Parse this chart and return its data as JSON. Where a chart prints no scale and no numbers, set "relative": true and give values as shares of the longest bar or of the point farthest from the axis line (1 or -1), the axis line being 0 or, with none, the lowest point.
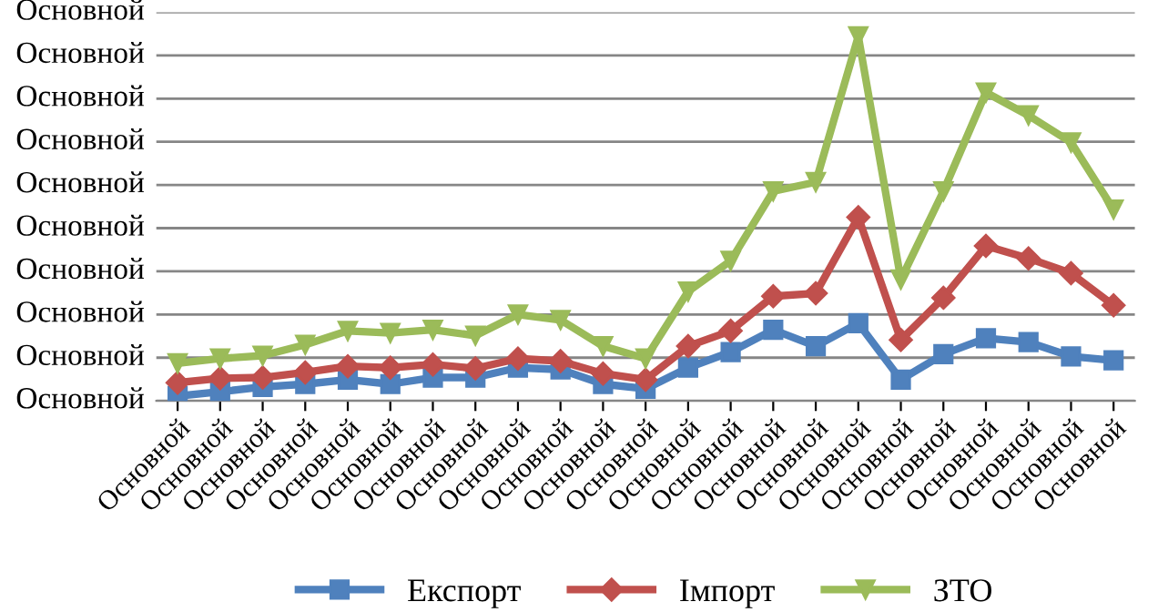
{
  "chart_data": {
    "type": "line",
    "relative": true,
    "categories": [
      "Основной",
      "Основной",
      "Основной",
      "Основной",
      "Основной",
      "Основной",
      "Основной",
      "Основной",
      "Основной",
      "Основной",
      "Основной",
      "Основной",
      "Основной",
      "Основной",
      "Основной",
      "Основной",
      "Основной",
      "Основной",
      "Основной",
      "Основной",
      "Основной",
      "Основной",
      "Основной"
    ],
    "series": [
      {
        "name": "Експорт",
        "color": "#4f81bd",
        "marker": "square",
        "values": [
          0.013,
          0.025,
          0.038,
          0.046,
          0.058,
          0.046,
          0.064,
          0.064,
          0.091,
          0.086,
          0.046,
          0.033,
          0.091,
          0.134,
          0.195,
          0.15,
          0.213,
          0.058,
          0.128,
          0.172,
          0.161,
          0.122,
          0.111
        ]
      },
      {
        "name": "Імпорт",
        "color": "#c0504d",
        "marker": "diamond",
        "values": [
          0.05,
          0.062,
          0.064,
          0.078,
          0.095,
          0.091,
          0.1,
          0.089,
          0.116,
          0.109,
          0.075,
          0.058,
          0.15,
          0.192,
          0.287,
          0.295,
          0.504,
          0.167,
          0.283,
          0.425,
          0.391,
          0.35,
          0.262
        ]
      },
      {
        "name": "ЗТО",
        "color": "#9bbb59",
        "marker": "triangle",
        "values": [
          0.103,
          0.116,
          0.124,
          0.154,
          0.192,
          0.186,
          0.195,
          0.179,
          0.237,
          0.222,
          0.15,
          0.116,
          0.3,
          0.384,
          0.575,
          0.6,
          1.0,
          0.333,
          0.575,
          0.846,
          0.783,
          0.709,
          0.525
        ]
      }
    ],
    "annotations": [
      "Основной",
      "Основной",
      "Основной",
      "Основной",
      "Основной",
      "Основной",
      "Основной",
      "Основной",
      "Основной",
      "Основной"
    ],
    "grid": "y",
    "legend": "bottom",
    "line_style": "solid"
  }
}
